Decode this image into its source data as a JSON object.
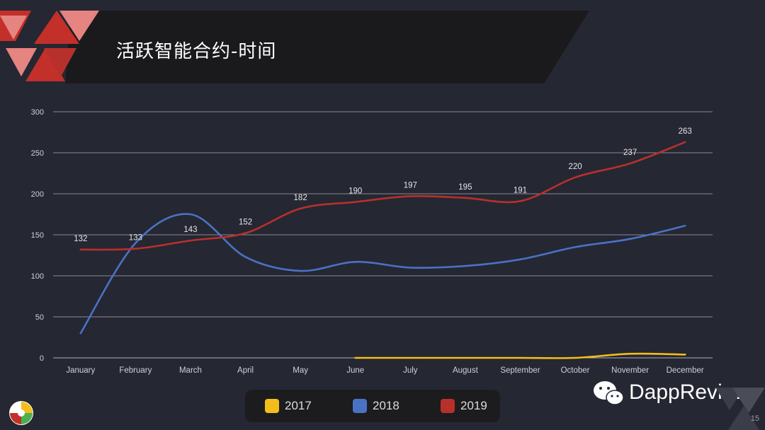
{
  "slide": {
    "title": "活跃智能合约-时间",
    "brand": "DappReview",
    "page_number": "15"
  },
  "colors": {
    "background": "#252733",
    "banner": "#1a1a1c",
    "accent_red": "#c3302a",
    "accent_pink": "#e58480",
    "series_2017": "#f4bd1a",
    "series_2018": "#4a72c4",
    "series_2019": "#b8302b",
    "grid": "#8a8a92"
  },
  "chart_data": {
    "type": "line",
    "title": "",
    "xlabel": "",
    "ylabel": "",
    "ylim": [
      0,
      300
    ],
    "yticks": [
      0,
      50,
      100,
      150,
      200,
      250,
      300
    ],
    "grid": true,
    "legend_position": "bottom",
    "categories": [
      "January",
      "February",
      "March",
      "April",
      "May",
      "June",
      "July",
      "August",
      "September",
      "October",
      "November",
      "December"
    ],
    "series": [
      {
        "name": "2017",
        "color": "#f4bd1a",
        "values": [
          null,
          null,
          null,
          null,
          null,
          0,
          0,
          0,
          0,
          0,
          5,
          4
        ],
        "data_labels": false
      },
      {
        "name": "2018",
        "color": "#4a72c4",
        "values": [
          30,
          140,
          175,
          123,
          106,
          117,
          110,
          112,
          120,
          135,
          145,
          161
        ],
        "data_labels": false
      },
      {
        "name": "2019",
        "color": "#b8302b",
        "values": [
          132,
          133,
          143,
          152,
          182,
          190,
          197,
          195,
          191,
          220,
          237,
          263
        ],
        "data_labels": true
      }
    ]
  }
}
